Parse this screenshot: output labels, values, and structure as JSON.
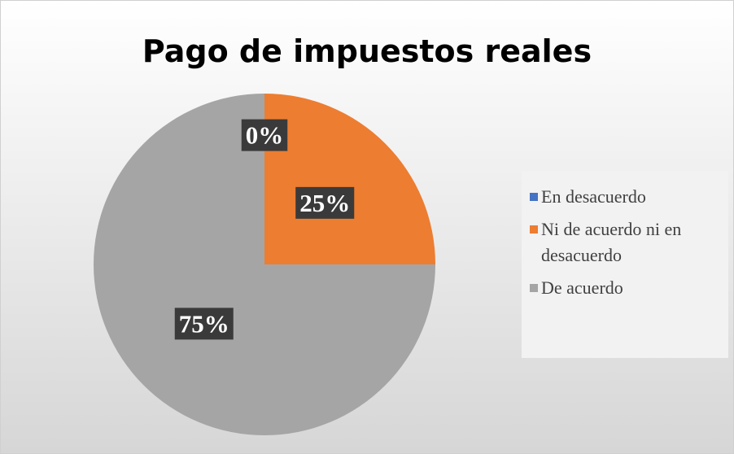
{
  "chart_data": {
    "type": "pie",
    "title": "Pago de impuestos reales",
    "categories": [
      "En desacuerdo",
      "Ni de acuerdo ni en desacuerdo",
      "De acuerdo"
    ],
    "values": [
      0,
      25,
      75
    ],
    "value_labels": [
      "0%",
      "25%",
      "75%"
    ],
    "colors": [
      "#4472c4",
      "#ed7d31",
      "#a5a5a5"
    ],
    "legend": "right"
  }
}
